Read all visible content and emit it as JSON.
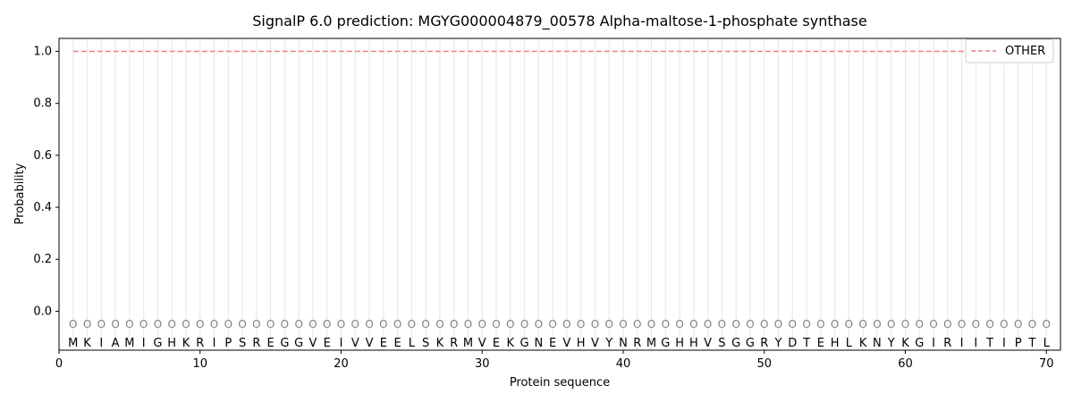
{
  "chart_data": {
    "type": "line",
    "title": "SignalP 6.0 prediction: MGYG000004879_00578 Alpha-maltose-1-phosphate synthase",
    "xlabel": "Protein sequence",
    "ylabel": "Probability",
    "xlim": [
      0,
      71
    ],
    "ylim": [
      -0.15,
      1.05
    ],
    "xticks": [
      0,
      10,
      20,
      30,
      40,
      50,
      60,
      70
    ],
    "yticks": [
      0.0,
      0.2,
      0.4,
      0.6,
      0.8,
      1.0
    ],
    "sequence": [
      "M",
      "K",
      "I",
      "A",
      "M",
      "I",
      "G",
      "H",
      "K",
      "R",
      "I",
      "P",
      "S",
      "R",
      "E",
      "G",
      "G",
      "V",
      "E",
      "I",
      "V",
      "V",
      "E",
      "E",
      "L",
      "S",
      "K",
      "R",
      "M",
      "V",
      "E",
      "K",
      "G",
      "N",
      "E",
      "V",
      "H",
      "V",
      "Y",
      "N",
      "R",
      "M",
      "G",
      "H",
      "H",
      "V",
      "S",
      "G",
      "G",
      "R",
      "Y",
      "D",
      "T",
      "E",
      "H",
      "L",
      "K",
      "N",
      "Y",
      "K",
      "G",
      "I",
      "R",
      "I",
      "I",
      "T",
      "I",
      "P",
      "T",
      "L"
    ],
    "state_labels": [
      "O",
      "O",
      "O",
      "O",
      "O",
      "O",
      "O",
      "O",
      "O",
      "O",
      "O",
      "O",
      "O",
      "O",
      "O",
      "O",
      "O",
      "O",
      "O",
      "O",
      "O",
      "O",
      "O",
      "O",
      "O",
      "O",
      "O",
      "O",
      "O",
      "O",
      "O",
      "O",
      "O",
      "O",
      "O",
      "O",
      "O",
      "O",
      "O",
      "O",
      "O",
      "O",
      "O",
      "O",
      "O",
      "O",
      "O",
      "O",
      "O",
      "O",
      "O",
      "O",
      "O",
      "O",
      "O",
      "O",
      "O",
      "O",
      "O",
      "O",
      "O",
      "O",
      "O",
      "O",
      "O",
      "O",
      "O",
      "O",
      "O",
      "O"
    ],
    "series": [
      {
        "name": "OTHER",
        "color": "#f08080",
        "style": "dashed",
        "x_start": 1,
        "x_end": 70,
        "value": 1.0
      }
    ],
    "legend_position": "top-right",
    "vertical_gridlines": true
  }
}
